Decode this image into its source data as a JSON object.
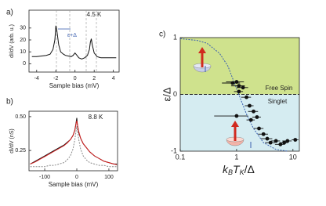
{
  "chart_data": [
    {
      "type": "line",
      "panel_label": "a)",
      "xlabel": "Sample bias (mV)",
      "ylabel": "dI/dV (arb. u.)",
      "annotations": [
        "4.5 K",
        "ε+Δ"
      ],
      "x": [
        -4.5,
        -4,
        -3.5,
        -3,
        -2.6,
        -2.3,
        -2.1,
        -2,
        -1.9,
        -1.7,
        -1.5,
        -1.2,
        -1,
        -0.7,
        -0.4,
        -0.2,
        0,
        0.2,
        0.4,
        0.7,
        1,
        1.3,
        1.5,
        1.6,
        1.7,
        1.8,
        2,
        2.3,
        2.7,
        3,
        3.5,
        4,
        4.3
      ],
      "values": [
        6,
        6,
        6.5,
        7,
        8,
        12,
        20,
        32,
        28,
        16,
        10,
        8,
        7,
        6.5,
        6,
        7,
        9,
        7,
        5,
        4,
        5,
        7,
        12,
        18,
        21,
        16,
        9,
        6,
        5,
        5,
        5,
        5,
        5
      ],
      "color": "#111111",
      "xlim": [
        -4.8,
        4.6
      ],
      "ylim": [
        -7,
        45
      ],
      "xticks": [
        -4,
        -2,
        0,
        2,
        4
      ],
      "yticks": [
        0,
        10,
        20,
        30
      ]
    },
    {
      "type": "line",
      "panel_label": "b)",
      "xlabel": "Sample bias (mV)",
      "ylabel": "dI/dV (nS)",
      "annotations": [
        "8.8 K"
      ],
      "x": [
        -145,
        -130,
        -115,
        -100,
        -85,
        -70,
        -55,
        -40,
        -30,
        -20,
        -12,
        -6,
        -2,
        0,
        2,
        6,
        12,
        20,
        30,
        40,
        55,
        70,
        85,
        100,
        115,
        125
      ],
      "series": [
        {
          "color": "#111111",
          "values": [
            0.15,
            0.17,
            0.19,
            0.21,
            0.23,
            0.25,
            0.27,
            0.29,
            0.31,
            0.33,
            0.36,
            0.4,
            0.46,
            0.49,
            0.44,
            0.38,
            0.34,
            0.3,
            0.27,
            0.24,
            0.21,
            0.19,
            0.17,
            0.16,
            0.15,
            0.15
          ]
        },
        {
          "color": "#d62020",
          "values": [
            0.15,
            0.165,
            0.185,
            0.205,
            0.225,
            0.245,
            0.265,
            0.285,
            0.305,
            0.33,
            0.36,
            0.4,
            0.45,
            0.47,
            0.44,
            0.39,
            0.34,
            0.3,
            0.27,
            0.24,
            0.21,
            0.19,
            0.17,
            0.16,
            0.15,
            0.145
          ]
        },
        {
          "color": "#888888",
          "dashed": true,
          "values": [
            0.13,
            0.13,
            0.13,
            0.13,
            0.14,
            0.14,
            0.15,
            0.16,
            0.18,
            0.21,
            0.26,
            0.33,
            0.4,
            0.43,
            0.4,
            0.33,
            0.26,
            0.21,
            0.18,
            0.16,
            0.15,
            0.14,
            0.14,
            0.13,
            0.13,
            0.13
          ]
        }
      ],
      "xlim": [
        -149,
        127
      ],
      "ylim": [
        0.1,
        0.54
      ],
      "xticks": [
        -100,
        0,
        100
      ],
      "yticks": [
        {
          "value": 0.25,
          "label": "0.25"
        },
        {
          "value": 0.5,
          "label": "0.50"
        }
      ]
    },
    {
      "type": "scatter",
      "panel_label": "c)",
      "ylabel": "ε/Δ",
      "xlabel_parts": [
        "k",
        "B",
        "T",
        "K",
        "/Δ"
      ],
      "annotations": [
        "Free Spin",
        "Singlet"
      ],
      "x": [
        0.85,
        1.0,
        1.1,
        1.3,
        1.1,
        1.5,
        1.7,
        1.0,
        2.0,
        1.8,
        2.3,
        2.5,
        3.0,
        3.5,
        4,
        5,
        6,
        7,
        8,
        11
      ],
      "values": [
        0.2,
        0.22,
        0.15,
        0.12,
        0.05,
        -0.05,
        -0.2,
        -0.38,
        -0.3,
        -0.45,
        -0.4,
        -0.6,
        -0.7,
        -0.78,
        -0.85,
        -0.82,
        -0.88,
        -0.85,
        -0.82,
        -0.8
      ],
      "xerr": [
        0.3,
        0.35,
        0.3,
        0.3,
        0.2,
        0.3,
        0.3,
        0.6,
        0.4,
        0.3,
        0.4,
        0.5,
        0.6,
        0.8,
        0.8,
        0.9,
        1.2,
        1.2,
        1.5,
        1.5
      ],
      "color": "#111111",
      "fit": {
        "x": [
          0.1,
          0.2,
          0.3,
          0.5,
          0.7,
          1,
          1.5,
          2,
          3,
          5,
          8
        ],
        "values": [
          0.98,
          0.95,
          0.9,
          0.72,
          0.5,
          0.1,
          -0.35,
          -0.6,
          -0.85,
          -0.97,
          -1
        ],
        "color": "#3a5fb0"
      },
      "region_colors": [
        "#cfe28d",
        "#d5ecf1"
      ],
      "xscale": "log",
      "xlim": [
        0.1,
        13
      ],
      "ylim": [
        -1,
        1
      ],
      "xticks": [
        0.1,
        1,
        10
      ],
      "yticks": [
        -1,
        0,
        1
      ]
    }
  ]
}
